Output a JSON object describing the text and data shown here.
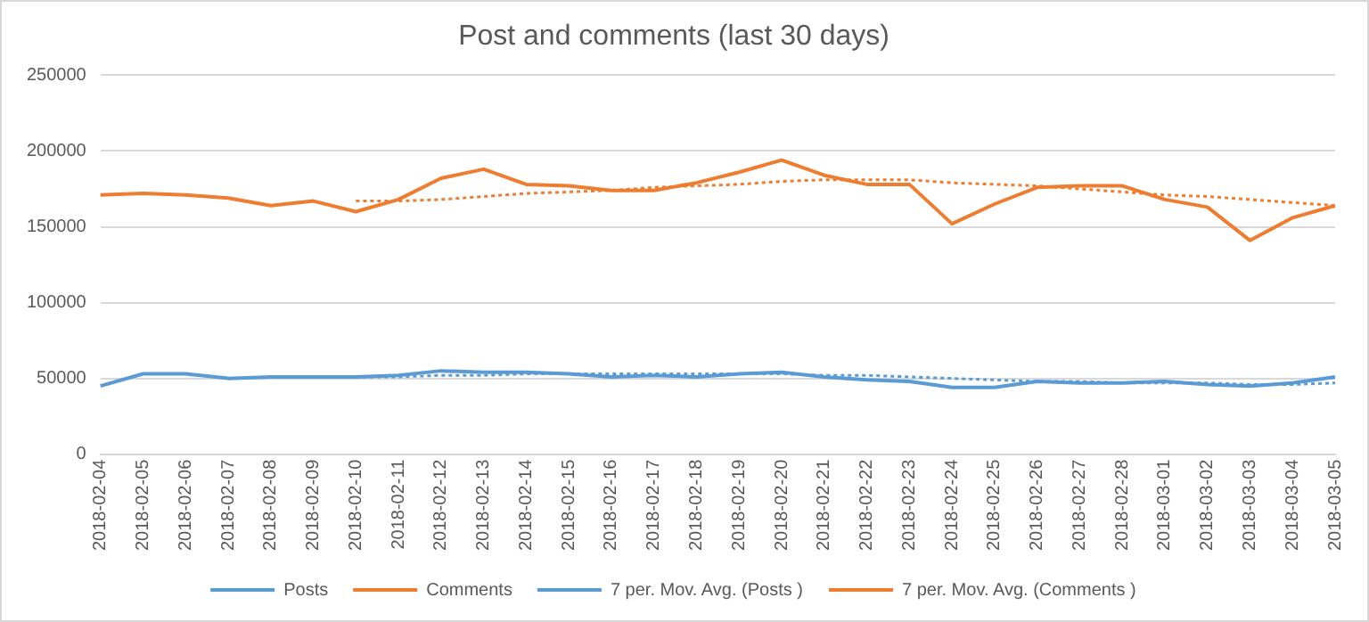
{
  "chart_data": {
    "type": "line",
    "title": "Post and comments (last 30 days)",
    "categories": [
      "2018-02-04",
      "2018-02-05",
      "2018-02-06",
      "2018-02-07",
      "2018-02-08",
      "2018-02-09",
      "2018-02-10",
      "2018-02-11",
      "2018-02-12",
      "2018-02-13",
      "2018-02-14",
      "2018-02-15",
      "2018-02-16",
      "2018-02-17",
      "2018-02-18",
      "2018-02-19",
      "2018-02-20",
      "2018-02-21",
      "2018-02-22",
      "2018-02-23",
      "2018-02-24",
      "2018-02-25",
      "2018-02-26",
      "2018-02-27",
      "2018-02-28",
      "2018-03-01",
      "2018-03-02",
      "2018-03-03",
      "2018-03-04",
      "2018-03-05"
    ],
    "series": [
      {
        "name": "Posts",
        "color": "#5b9bd5",
        "line_style": "solid",
        "values": [
          45000,
          53000,
          53000,
          50000,
          51000,
          51000,
          51000,
          52000,
          55000,
          54000,
          54000,
          53000,
          51000,
          52000,
          51000,
          53000,
          54000,
          51000,
          49000,
          48000,
          44000,
          44000,
          48000,
          47000,
          47000,
          48000,
          46000,
          45000,
          47000,
          51000
        ]
      },
      {
        "name": "Comments",
        "color": "#ed7d31",
        "line_style": "solid",
        "values": [
          171000,
          172000,
          171000,
          169000,
          164000,
          167000,
          160000,
          168000,
          182000,
          188000,
          178000,
          177000,
          174000,
          174000,
          179000,
          186000,
          194000,
          184000,
          178000,
          178000,
          152000,
          165000,
          176000,
          177000,
          177000,
          168000,
          163000,
          141000,
          156000,
          164000
        ]
      },
      {
        "name": "7 per. Mov. Avg. (Posts )",
        "color": "#5b9bd5",
        "line_style": "dotted",
        "values": [
          null,
          null,
          null,
          null,
          null,
          null,
          51000,
          51000,
          52000,
          52000,
          53000,
          53000,
          53000,
          53000,
          53000,
          53000,
          53000,
          52000,
          52000,
          51000,
          50000,
          49000,
          48000,
          48000,
          47000,
          47000,
          47000,
          46000,
          46000,
          47000
        ]
      },
      {
        "name": "7 per. Mov. Avg. (Comments )",
        "color": "#ed7d31",
        "line_style": "dotted",
        "values": [
          null,
          null,
          null,
          null,
          null,
          null,
          167000,
          167000,
          168000,
          170000,
          172000,
          173000,
          174000,
          176000,
          177000,
          178000,
          180000,
          181000,
          181000,
          181000,
          179000,
          178000,
          177000,
          175000,
          173000,
          171000,
          170000,
          168000,
          166000,
          164000
        ]
      }
    ],
    "ylim": [
      0,
      250000
    ],
    "yticks": [
      0,
      50000,
      100000,
      150000,
      200000,
      250000
    ],
    "grid": "y",
    "legend": "bottom",
    "marker": "none"
  }
}
